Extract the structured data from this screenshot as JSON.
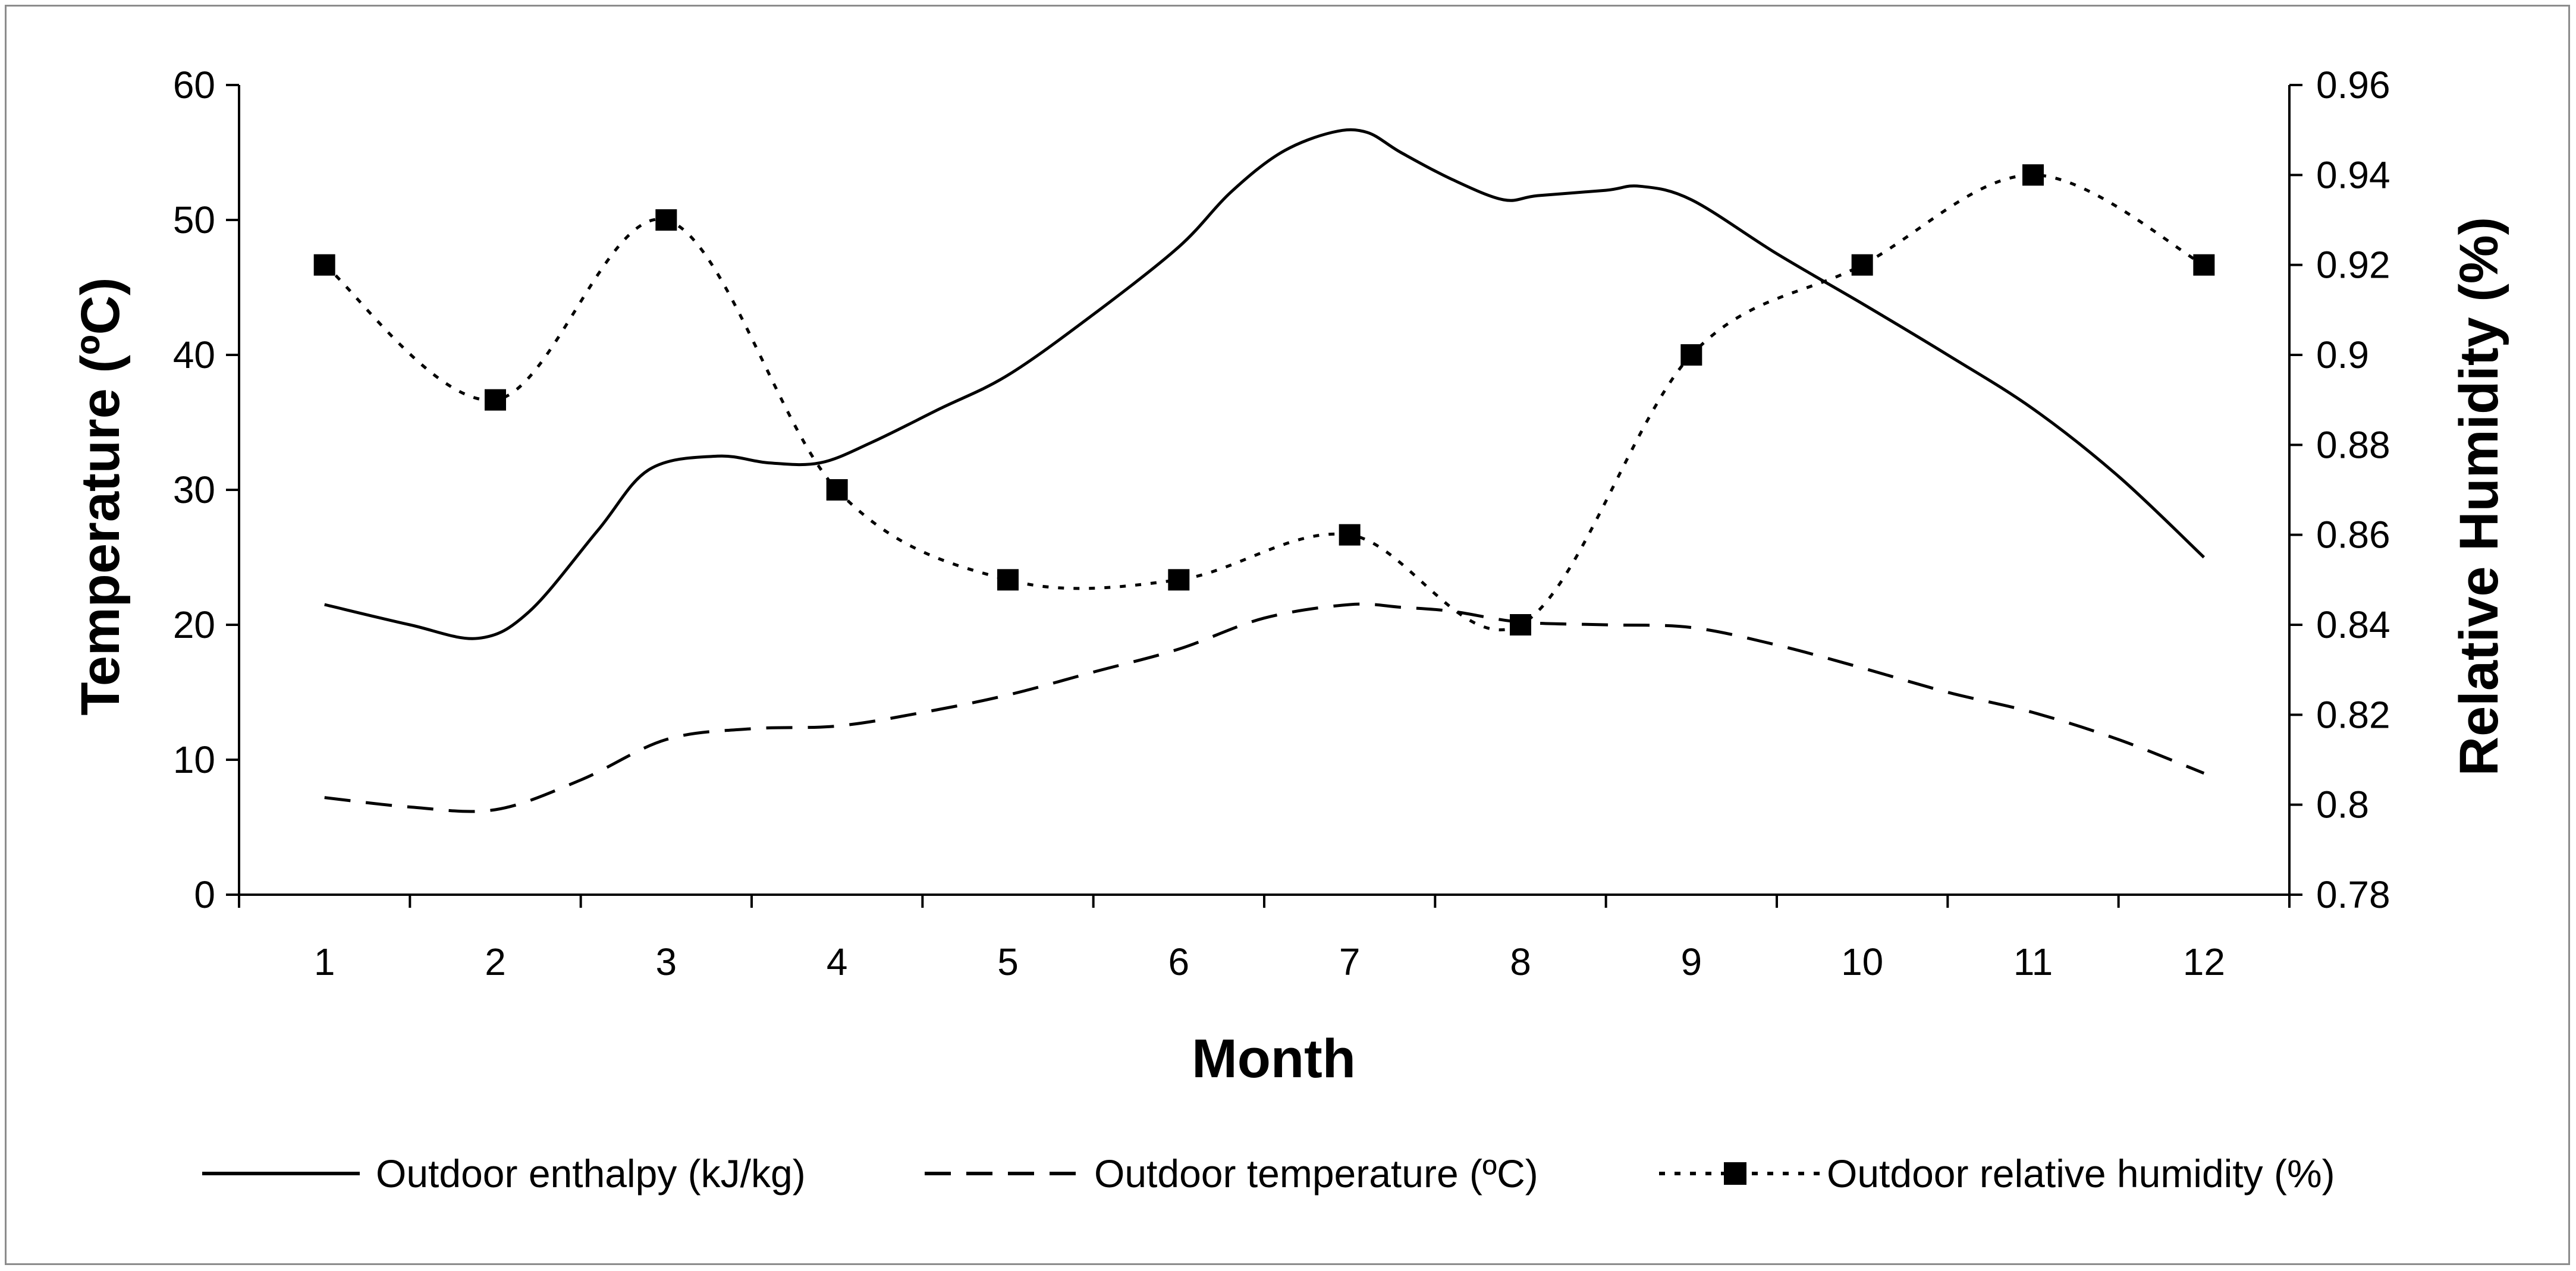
{
  "chart_data": {
    "type": "line",
    "title": "",
    "xlabel": "Month",
    "ylabel": "Temperature (ºC)",
    "y2label": "Relative Humidity (%)",
    "x": [
      1,
      2,
      3,
      4,
      5,
      6,
      7,
      8,
      9,
      10,
      11,
      12
    ],
    "xticks": [
      "1",
      "2",
      "3",
      "4",
      "5",
      "6",
      "7",
      "8",
      "9",
      "10",
      "11",
      "12"
    ],
    "ylim": [
      0,
      60
    ],
    "yticks": [
      "0",
      "10",
      "20",
      "30",
      "40",
      "50",
      "60"
    ],
    "y2lim": [
      0.78,
      0.96
    ],
    "y2ticks": [
      "0.78",
      "0.8",
      "0.82",
      "0.84",
      "0.86",
      "0.88",
      "0.9",
      "0.92",
      "0.94",
      "0.96"
    ],
    "grid": false,
    "legend_position": "bottom",
    "series": [
      {
        "name": "Outdoor enthalpy (kJ/kg)",
        "axis": "left",
        "style": "solid",
        "x": [
          1,
          1.5,
          1.9,
          2.2,
          2.6,
          2.9,
          3.3,
          3.6,
          3.9,
          4.2,
          4.6,
          5.0,
          5.5,
          6.0,
          6.3,
          6.6,
          6.9,
          7.1,
          7.3,
          7.6,
          7.9,
          8.1,
          8.5,
          8.7,
          9.0,
          9.5,
          10.0,
          10.5,
          11.0,
          11.5,
          12.0
        ],
        "values": [
          21.5,
          20.0,
          19.0,
          21.0,
          27.0,
          31.5,
          32.5,
          32.0,
          32.0,
          33.5,
          36.0,
          38.5,
          43.0,
          48.0,
          52.0,
          55.0,
          56.5,
          56.5,
          55.0,
          53.0,
          51.5,
          51.8,
          52.2,
          52.5,
          51.5,
          47.5,
          43.8,
          40.0,
          36.0,
          31.0,
          25.0
        ]
      },
      {
        "name": "Outdoor temperature (ºC)",
        "axis": "left",
        "style": "dashed",
        "x": [
          1,
          1.5,
          2.0,
          2.5,
          3.0,
          3.5,
          4.0,
          4.5,
          5.0,
          5.5,
          6.0,
          6.5,
          7.0,
          7.3,
          7.6,
          8.0,
          8.5,
          9.0,
          9.5,
          10.0,
          10.5,
          11.0,
          11.5,
          12.0
        ],
        "values": [
          7.2,
          6.5,
          6.3,
          8.5,
          11.5,
          12.3,
          12.5,
          13.5,
          14.8,
          16.5,
          18.2,
          20.5,
          21.5,
          21.3,
          21.0,
          20.2,
          20.0,
          19.8,
          18.5,
          16.8,
          15.0,
          13.5,
          11.5,
          9.0
        ]
      },
      {
        "name": "Outdoor relative humidity (%)",
        "axis": "right",
        "style": "dotted-marker",
        "x": [
          1,
          2,
          3,
          4,
          5,
          6,
          7,
          8,
          9,
          10,
          11,
          12
        ],
        "values": [
          0.92,
          0.89,
          0.93,
          0.87,
          0.85,
          0.85,
          0.86,
          0.84,
          0.9,
          0.92,
          0.94,
          0.92
        ]
      }
    ]
  }
}
